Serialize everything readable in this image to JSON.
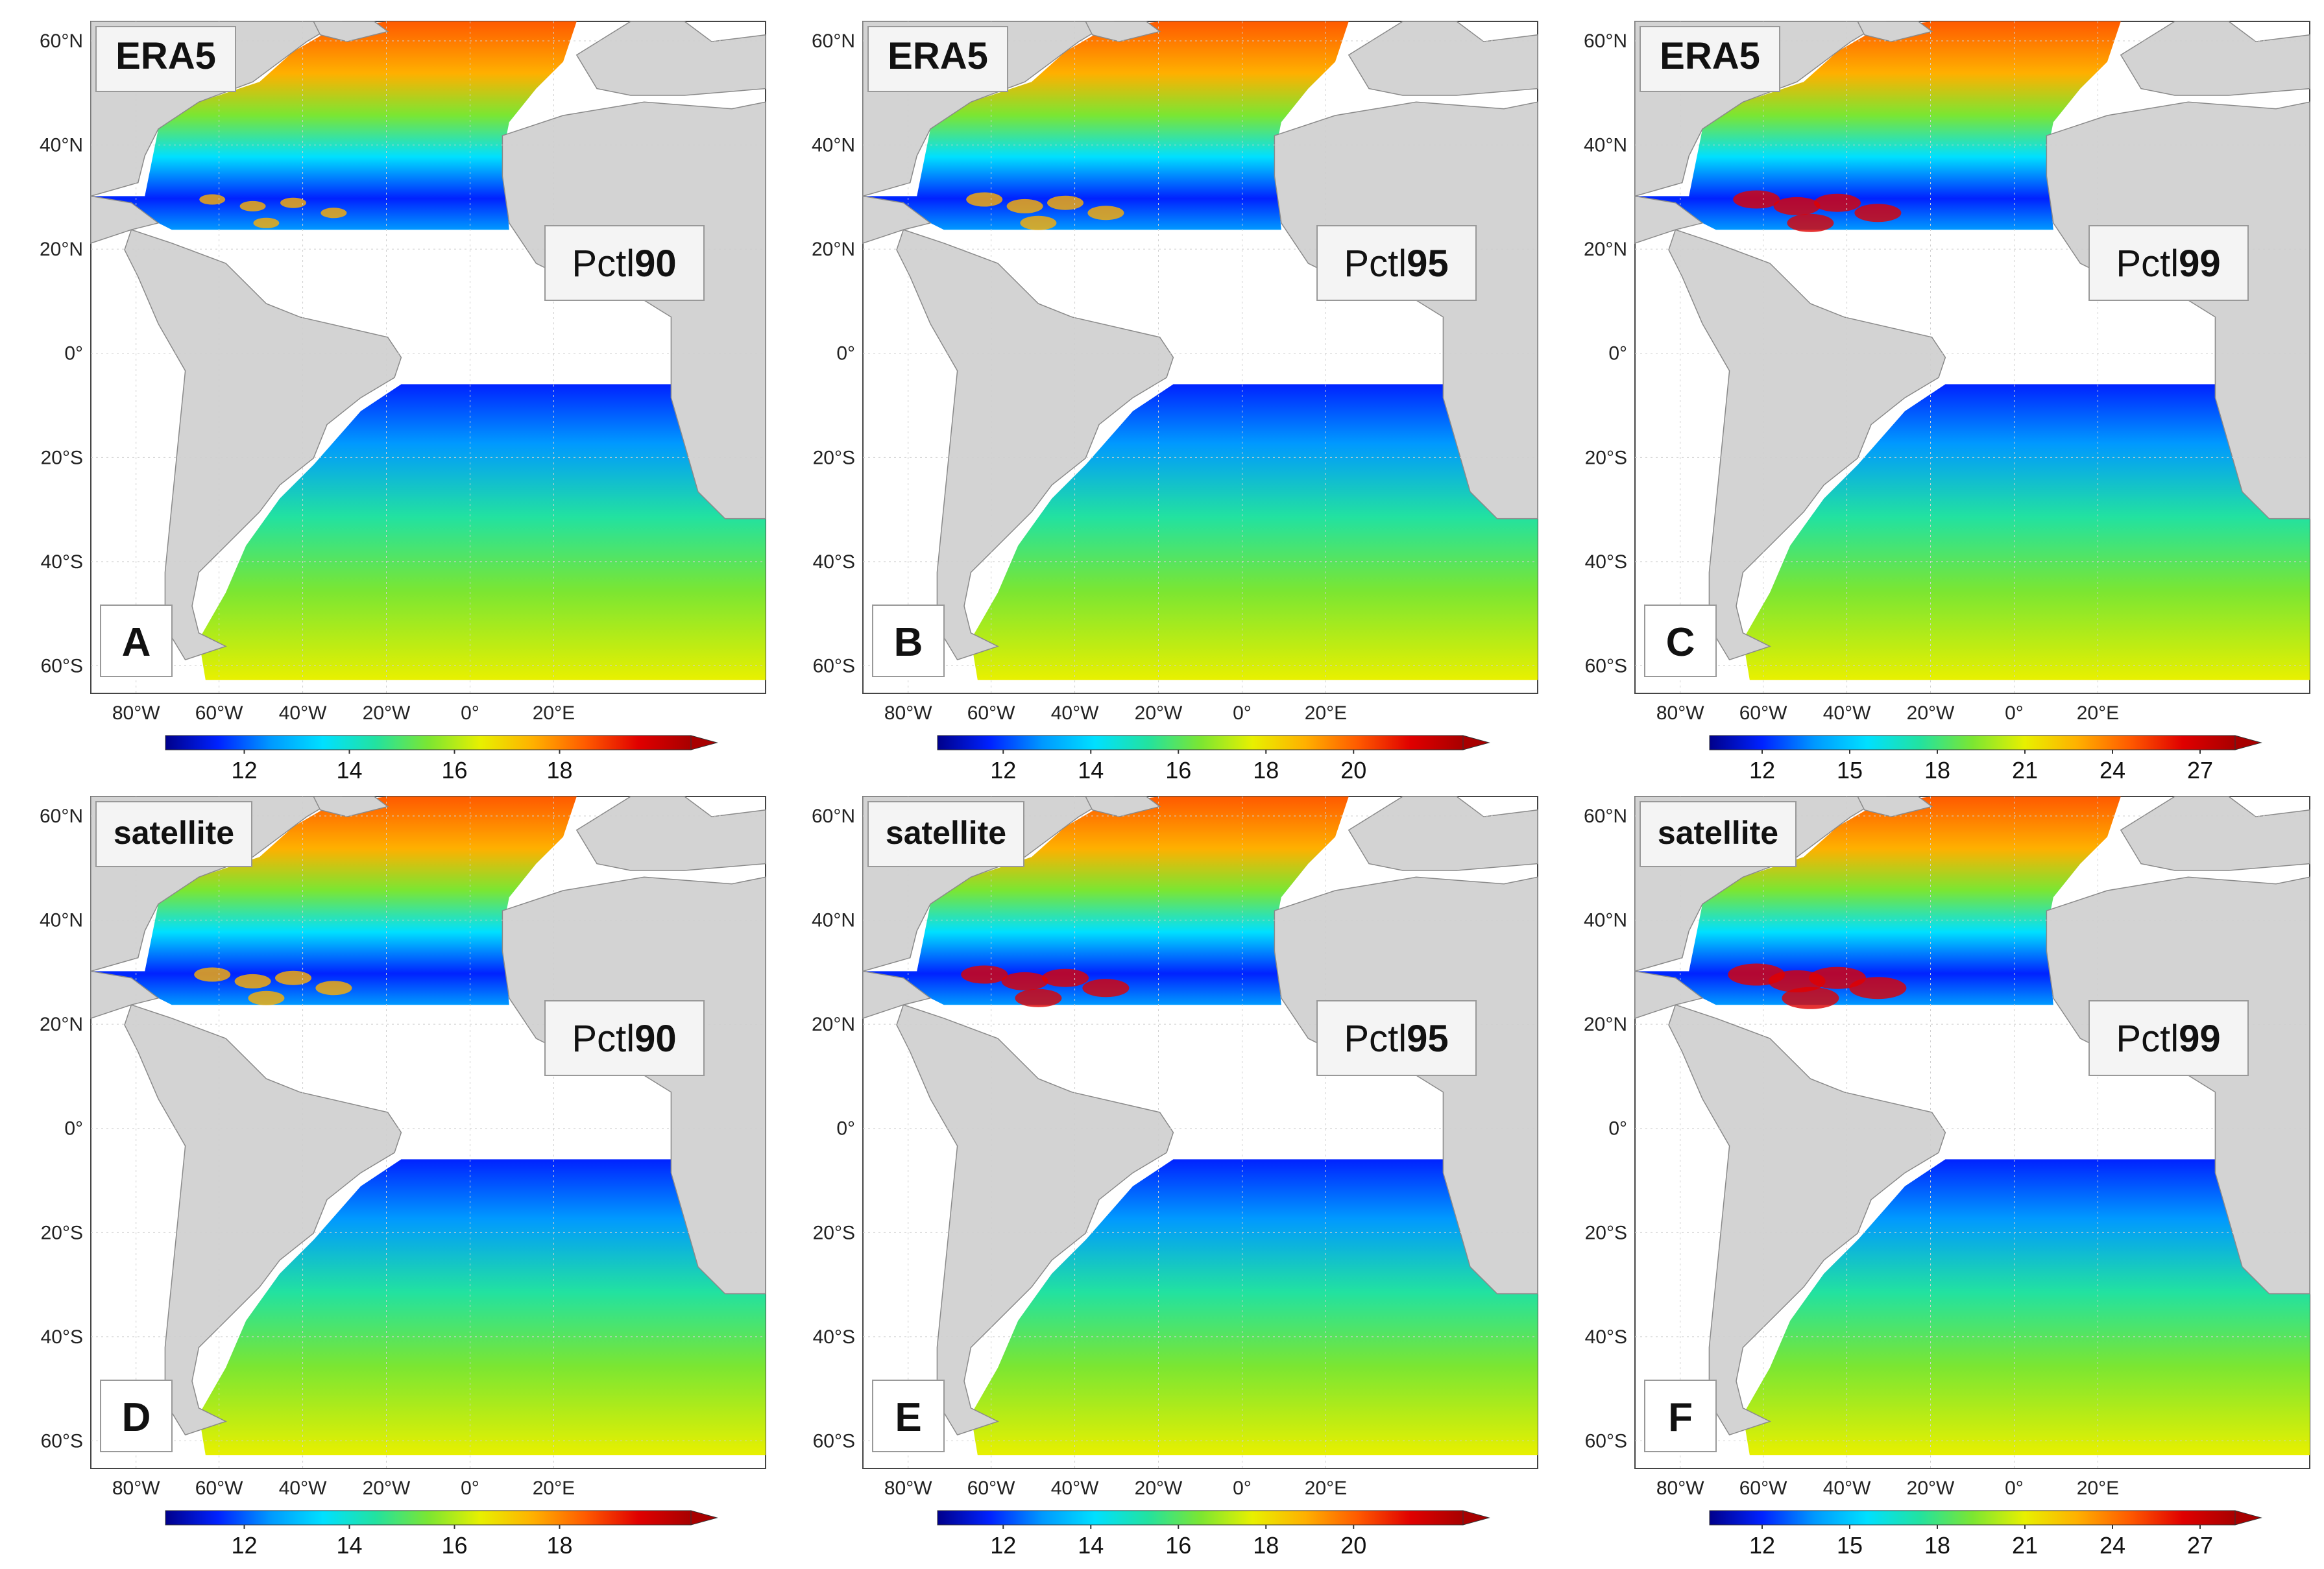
{
  "figure": {
    "panels": [
      {
        "letter": "A",
        "source": "ERA5",
        "pctl_prefix": "Pctl",
        "pctl_value": "90",
        "colorbar": "cb1"
      },
      {
        "letter": "B",
        "source": "ERA5",
        "pctl_prefix": "Pctl",
        "pctl_value": "95",
        "colorbar": "cb2"
      },
      {
        "letter": "C",
        "source": "ERA5",
        "pctl_prefix": "Pctl",
        "pctl_value": "99",
        "colorbar": "cb3"
      },
      {
        "letter": "D",
        "source": "satellite",
        "pctl_prefix": "Pctl",
        "pctl_value": "90",
        "colorbar": "cb1"
      },
      {
        "letter": "E",
        "source": "satellite",
        "pctl_prefix": "Pctl",
        "pctl_value": "95",
        "colorbar": "cb2"
      },
      {
        "letter": "F",
        "source": "satellite",
        "pctl_prefix": "Pctl",
        "pctl_value": "99",
        "colorbar": "cb3"
      }
    ],
    "lat_labels": [
      "60°N",
      "40°N",
      "20°N",
      "0°",
      "20°S",
      "40°S",
      "60°S"
    ],
    "lon_labels": [
      "80°W",
      "60°W",
      "40°W",
      "20°W",
      "0°",
      "20°E"
    ],
    "colorbars": {
      "cb1": {
        "min": 10.5,
        "max": 20.5,
        "ticks": [
          "12",
          "14",
          "16",
          "18"
        ],
        "extend": "max"
      },
      "cb2": {
        "min": 10.5,
        "max": 22.5,
        "ticks": [
          "12",
          "14",
          "16",
          "18",
          "20"
        ],
        "extend": "max"
      },
      "cb3": {
        "min": 10.2,
        "max": 28.2,
        "ticks": [
          "12",
          "15",
          "18",
          "21",
          "24",
          "27"
        ],
        "extend": "max"
      }
    },
    "colormap": [
      "#00008b",
      "#0022ff",
      "#0099ff",
      "#00e0ff",
      "#22e2a0",
      "#7be632",
      "#e8f000",
      "#ffb000",
      "#ff5a00",
      "#e00000",
      "#a80000"
    ],
    "land_color": "#d3d3d3",
    "no_data_color": "#ffffff"
  }
}
